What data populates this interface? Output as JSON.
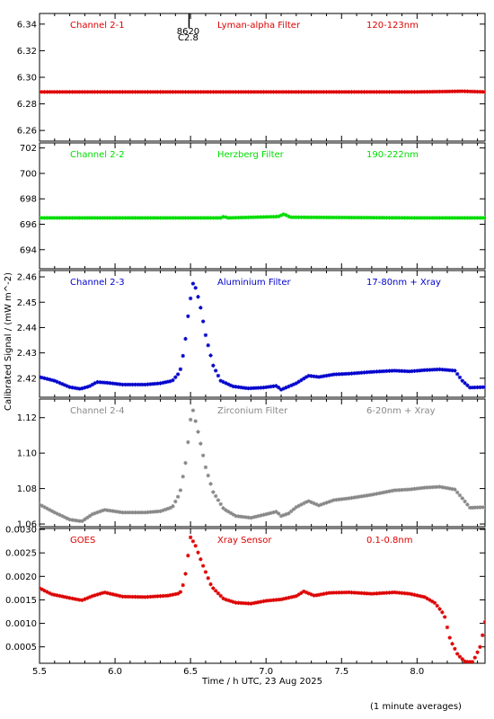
{
  "chart_data": {
    "type": "scatter",
    "xlabel": "Time / h UTC, 23 Aug 2025",
    "ylabel": "Calibrated Signal / (mW m^-2)",
    "xlim": [
      5.5,
      8.45
    ],
    "x_ticks": [
      "5.5",
      "6.0",
      "6.5",
      "7.0",
      "7.5",
      "8.0"
    ],
    "x_tick_values": [
      5.5,
      6.0,
      6.5,
      7.0,
      7.5,
      8.0
    ],
    "marker": "asterisk",
    "event_marker": {
      "x": 6.49,
      "label1": "8620",
      "label2": "C2.8"
    },
    "note": "(1 minute averages)",
    "panels": [
      {
        "channel": "Channel 2-1",
        "filter": "Lyman-alpha Filter",
        "band": "120-123nm",
        "color": "#dd0000",
        "ylim": [
          6.252,
          6.348
        ],
        "y_ticks": [
          "6.26",
          "6.28",
          "6.30",
          "6.32",
          "6.34"
        ],
        "y_tick_values": [
          6.26,
          6.28,
          6.3,
          6.32,
          6.34
        ],
        "series": [
          [
            5.5,
            6.289
          ],
          [
            6.5,
            6.289
          ],
          [
            7.0,
            6.289
          ],
          [
            8.0,
            6.289
          ],
          [
            8.2,
            6.2893
          ],
          [
            8.3,
            6.2895
          ],
          [
            8.45,
            6.289
          ]
        ]
      },
      {
        "channel": "Channel 2-2",
        "filter": "Herzberg Filter",
        "band": "190-222nm",
        "color": "#00dd00",
        "ylim": [
          692.5,
          702.4
        ],
        "y_ticks": [
          "694",
          "696",
          "698",
          "700",
          "702"
        ],
        "y_tick_values": [
          694,
          696,
          698,
          700,
          702
        ],
        "series": [
          [
            5.5,
            696.5
          ],
          [
            6.7,
            696.5
          ],
          [
            6.72,
            696.6
          ],
          [
            6.75,
            696.5
          ],
          [
            7.08,
            696.6
          ],
          [
            7.12,
            696.8
          ],
          [
            7.16,
            696.55
          ],
          [
            8.0,
            696.5
          ],
          [
            8.45,
            696.5
          ]
        ]
      },
      {
        "channel": "Channel 2-3",
        "filter": "Aluminium Filter",
        "band": "17-80nm + Xray",
        "color": "#0000cc",
        "ylim": [
          2.4125,
          2.4625
        ],
        "y_ticks": [
          "2.42",
          "2.43",
          "2.44",
          "2.45",
          "2.46"
        ],
        "y_tick_values": [
          2.42,
          2.43,
          2.44,
          2.45,
          2.46
        ],
        "series": [
          [
            5.5,
            2.4205
          ],
          [
            5.6,
            2.419
          ],
          [
            5.7,
            2.4165
          ],
          [
            5.77,
            2.4158
          ],
          [
            5.83,
            2.4168
          ],
          [
            5.88,
            2.4185
          ],
          [
            5.95,
            2.4182
          ],
          [
            6.05,
            2.4175
          ],
          [
            6.2,
            2.4175
          ],
          [
            6.3,
            2.418
          ],
          [
            6.38,
            2.419
          ],
          [
            6.43,
            2.4225
          ],
          [
            6.46,
            2.432
          ],
          [
            6.49,
            2.448
          ],
          [
            6.52,
            2.4585
          ],
          [
            6.56,
            2.45
          ],
          [
            6.6,
            2.437
          ],
          [
            6.65,
            2.425
          ],
          [
            6.7,
            2.419
          ],
          [
            6.78,
            2.4168
          ],
          [
            6.88,
            2.416
          ],
          [
            6.98,
            2.4163
          ],
          [
            7.07,
            2.417
          ],
          [
            7.1,
            2.4155
          ],
          [
            7.14,
            2.4165
          ],
          [
            7.2,
            2.418
          ],
          [
            7.28,
            2.421
          ],
          [
            7.35,
            2.4205
          ],
          [
            7.45,
            2.4215
          ],
          [
            7.55,
            2.4218
          ],
          [
            7.7,
            2.4225
          ],
          [
            7.85,
            2.423
          ],
          [
            7.95,
            2.4227
          ],
          [
            8.05,
            2.4232
          ],
          [
            8.15,
            2.4235
          ],
          [
            8.25,
            2.423
          ],
          [
            8.3,
            2.419
          ],
          [
            8.35,
            2.4163
          ],
          [
            8.45,
            2.4165
          ]
        ]
      },
      {
        "channel": "Channel 2-4",
        "filter": "Zirconium Filter",
        "band": "6-20nm + Xray",
        "color": "#888888",
        "ylim": [
          1.0585,
          1.1305
        ],
        "y_ticks": [
          "1.06",
          "1.08",
          "1.10",
          "1.12"
        ],
        "y_tick_values": [
          1.06,
          1.08,
          1.1,
          1.12
        ],
        "series": [
          [
            5.5,
            1.071
          ],
          [
            5.6,
            1.0665
          ],
          [
            5.7,
            1.0625
          ],
          [
            5.78,
            1.0615
          ],
          [
            5.85,
            1.0655
          ],
          [
            5.93,
            1.068
          ],
          [
            6.05,
            1.0665
          ],
          [
            6.2,
            1.0665
          ],
          [
            6.3,
            1.0672
          ],
          [
            6.38,
            1.0695
          ],
          [
            6.43,
            1.0775
          ],
          [
            6.47,
            1.096
          ],
          [
            6.51,
            1.1265
          ],
          [
            6.55,
            1.112
          ],
          [
            6.6,
            1.092
          ],
          [
            6.65,
            1.078
          ],
          [
            6.72,
            1.0685
          ],
          [
            6.8,
            1.0645
          ],
          [
            6.9,
            1.0635
          ],
          [
            7.0,
            1.0655
          ],
          [
            7.07,
            1.067
          ],
          [
            7.1,
            1.0645
          ],
          [
            7.15,
            1.066
          ],
          [
            7.2,
            1.0695
          ],
          [
            7.28,
            1.073
          ],
          [
            7.35,
            1.0705
          ],
          [
            7.45,
            1.0735
          ],
          [
            7.55,
            1.0745
          ],
          [
            7.7,
            1.0765
          ],
          [
            7.85,
            1.079
          ],
          [
            7.95,
            1.0795
          ],
          [
            8.05,
            1.0805
          ],
          [
            8.15,
            1.081
          ],
          [
            8.25,
            1.0795
          ],
          [
            8.3,
            1.0745
          ],
          [
            8.35,
            1.0692
          ],
          [
            8.45,
            1.0695
          ]
        ]
      },
      {
        "channel": "GOES",
        "filter": "Xray Sensor",
        "band": "0.1-0.8nm",
        "color": "#dd0000",
        "ylim": [
          0.00015,
          0.00302
        ],
        "y_ticks": [
          "0.0005",
          "0.0010",
          "0.0015",
          "0.0020",
          "0.0025",
          "0.0030"
        ],
        "y_tick_values": [
          0.0005,
          0.001,
          0.0015,
          0.002,
          0.0025,
          0.003
        ],
        "series": [
          [
            5.5,
            0.00175
          ],
          [
            5.58,
            0.00162
          ],
          [
            5.7,
            0.00154
          ],
          [
            5.78,
            0.00149
          ],
          [
            5.85,
            0.00158
          ],
          [
            5.93,
            0.00166
          ],
          [
            6.05,
            0.00157
          ],
          [
            6.2,
            0.00156
          ],
          [
            6.35,
            0.00159
          ],
          [
            6.43,
            0.00164
          ],
          [
            6.46,
            0.0019
          ],
          [
            6.5,
            0.00283
          ],
          [
            6.53,
            0.00268
          ],
          [
            6.58,
            0.00225
          ],
          [
            6.64,
            0.00178
          ],
          [
            6.72,
            0.00152
          ],
          [
            6.8,
            0.00144
          ],
          [
            6.9,
            0.00142
          ],
          [
            7.0,
            0.00148
          ],
          [
            7.1,
            0.00151
          ],
          [
            7.2,
            0.00158
          ],
          [
            7.25,
            0.00168
          ],
          [
            7.32,
            0.00159
          ],
          [
            7.42,
            0.00165
          ],
          [
            7.55,
            0.00166
          ],
          [
            7.7,
            0.00163
          ],
          [
            7.85,
            0.00166
          ],
          [
            7.95,
            0.00163
          ],
          [
            8.05,
            0.00156
          ],
          [
            8.12,
            0.00143
          ],
          [
            8.18,
            0.00118
          ],
          [
            8.22,
            0.00065
          ],
          [
            8.27,
            0.00033
          ],
          [
            8.32,
            0.00018
          ],
          [
            8.37,
            0.00018
          ],
          [
            8.42,
            0.00052
          ],
          [
            8.45,
            0.00103
          ]
        ]
      }
    ]
  }
}
